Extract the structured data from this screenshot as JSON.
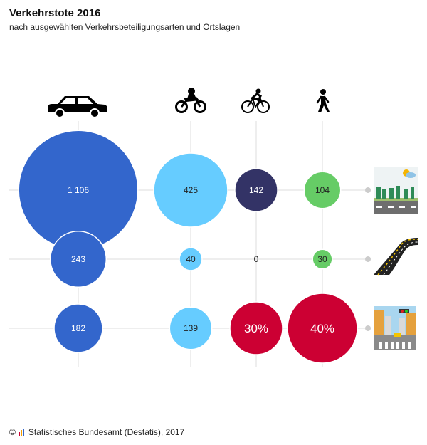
{
  "title": "Verkehrstote 2016",
  "subtitle": "nach ausgewählten Verkehrsbeteiligungsarten und Ortslagen",
  "footer": {
    "copyright": "©",
    "source": "Statistisches Bundesamt (Destatis), 2017"
  },
  "colors": {
    "car": "#3366cc",
    "motorcycle": "#66ccff",
    "bicycle": "#333366",
    "pedestrian": "#66cc66",
    "highlight": "#cc0033",
    "gridline": "#dddddd"
  },
  "chart_data": {
    "type": "bubble-matrix",
    "columns": [
      {
        "key": "car",
        "icon": "car-icon"
      },
      {
        "key": "motorcycle",
        "icon": "motorcycle-icon"
      },
      {
        "key": "bicycle",
        "icon": "bicycle-icon"
      },
      {
        "key": "pedestrian",
        "icon": "pedestrian-icon"
      }
    ],
    "rows": [
      {
        "key": "landstrasse",
        "icon": "country-road-icon"
      },
      {
        "key": "autobahn",
        "icon": "highway-icon"
      },
      {
        "key": "innerorts",
        "icon": "city-street-icon"
      }
    ],
    "cells": [
      [
        {
          "value": 1106,
          "label": "1 106"
        },
        {
          "value": 425,
          "label": "425"
        },
        {
          "value": 142,
          "label": "142"
        },
        {
          "value": 104,
          "label": "104"
        }
      ],
      [
        {
          "value": 243,
          "label": "243"
        },
        {
          "value": 40,
          "label": "40"
        },
        {
          "value": 0,
          "label": "0"
        },
        {
          "value": 30,
          "label": "30"
        }
      ],
      [
        {
          "value": 182,
          "label": "182"
        },
        {
          "value": 139,
          "label": "139"
        },
        {
          "value": 30,
          "label": "30%",
          "highlight": true
        },
        {
          "value": 40,
          "label": "40%",
          "highlight": true
        }
      ]
    ],
    "legend": "none",
    "grid": true
  }
}
